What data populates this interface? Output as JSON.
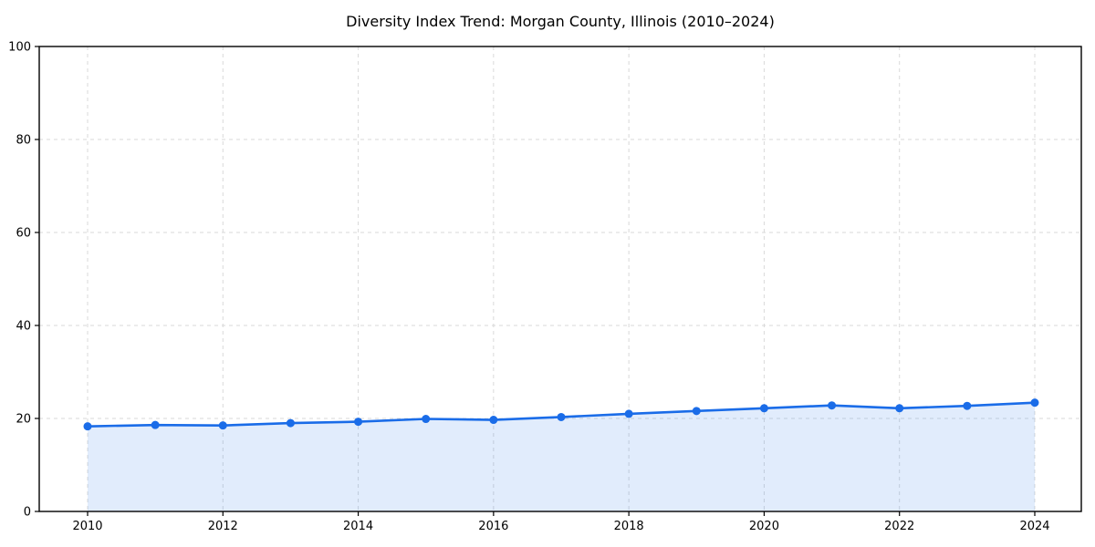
{
  "title": "Diversity Index Trend: Morgan County, Illinois (2010–2024)",
  "colors": {
    "line": "#1a6ce8",
    "marker": "#1a6ce8",
    "fill": "#1a6ce8",
    "fill_opacity": 0.13,
    "grid": "#d9d9d9",
    "axis": "#000000",
    "text": "#000000",
    "background": "#ffffff"
  },
  "chart_data": {
    "type": "line",
    "title": "Diversity Index Trend: Morgan County, Illinois (2010–2024)",
    "xlabel": "",
    "ylabel": "",
    "x": [
      2010,
      2011,
      2012,
      2013,
      2014,
      2015,
      2016,
      2017,
      2018,
      2019,
      2020,
      2021,
      2022,
      2023,
      2024
    ],
    "series": [
      {
        "name": "Diversity Index",
        "values": [
          18.3,
          18.6,
          18.5,
          19.0,
          19.3,
          19.9,
          19.7,
          20.3,
          21.0,
          21.6,
          22.2,
          22.8,
          22.2,
          22.7,
          23.4
        ]
      }
    ],
    "ylim": [
      0,
      100
    ],
    "yticks": [
      0,
      20,
      40,
      60,
      80,
      100
    ],
    "xticks": [
      2010,
      2012,
      2014,
      2016,
      2018,
      2020,
      2022,
      2024
    ],
    "grid": true,
    "grid_style": "dashed",
    "legend": false,
    "area_fill": true,
    "marker": "circle"
  }
}
